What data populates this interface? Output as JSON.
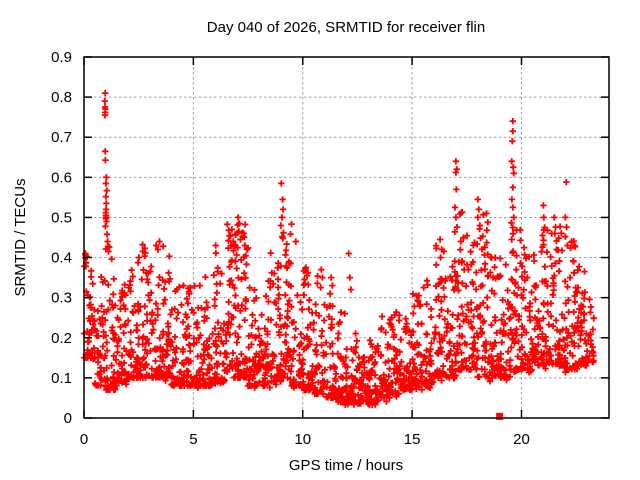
{
  "chart_data": {
    "type": "scatter",
    "title": "Day 040 of 2026, SRMTID for receiver flin",
    "xlabel": "GPS time / hours",
    "ylabel": "SRMTID / TECUs",
    "xlim": [
      0,
      24
    ],
    "ylim": [
      0,
      0.9
    ],
    "xticks": [
      {
        "value": 0,
        "label": "0"
      },
      {
        "value": 5,
        "label": "5"
      },
      {
        "value": 10,
        "label": "10"
      },
      {
        "value": 15,
        "label": "15"
      },
      {
        "value": 20,
        "label": "20"
      }
    ],
    "yticks": [
      {
        "value": 0.0,
        "label": "0"
      },
      {
        "value": 0.1,
        "label": "0.1"
      },
      {
        "value": 0.2,
        "label": "0.2"
      },
      {
        "value": 0.3,
        "label": "0.3"
      },
      {
        "value": 0.4,
        "label": "0.4"
      },
      {
        "value": 0.5,
        "label": "0.5"
      },
      {
        "value": 0.6,
        "label": "0.6"
      },
      {
        "value": 0.7,
        "label": "0.7"
      },
      {
        "value": 0.8,
        "label": "0.8"
      },
      {
        "value": 0.9,
        "label": "0.9"
      }
    ],
    "grid": {
      "show": true,
      "color": "#9e9e9e",
      "dash": "2.5,2.5"
    },
    "legend": "none",
    "marker": {
      "shape": "plus",
      "color": "#ff0000",
      "half_size": 3.2,
      "stroke_width": 1.8
    },
    "flagged_point": {
      "x": 19.0,
      "y": 0.004,
      "marker": "filled-square",
      "color": "#ff0000",
      "size": 7
    },
    "scatter_density_model": {
      "comment": "dense band of ~2200 points; bins = [start_hour, value_min, value_max, count, optional_bin_width_hours]; values skewed toward min",
      "seed": 7,
      "bin_hours": 0.5,
      "skew_exponent": 2.2,
      "bins": [
        [
          0.0,
          0.15,
          0.41,
          46
        ],
        [
          0.5,
          0.08,
          0.36,
          46
        ],
        [
          1.0,
          0.07,
          0.44,
          50
        ],
        [
          1.5,
          0.09,
          0.34,
          46
        ],
        [
          2.0,
          0.1,
          0.38,
          46
        ],
        [
          2.5,
          0.1,
          0.42,
          46
        ],
        [
          3.0,
          0.1,
          0.4,
          46
        ],
        [
          3.5,
          0.1,
          0.43,
          46
        ],
        [
          4.0,
          0.08,
          0.33,
          46
        ],
        [
          4.5,
          0.08,
          0.33,
          46
        ],
        [
          5.0,
          0.08,
          0.34,
          46
        ],
        [
          5.5,
          0.08,
          0.36,
          46
        ],
        [
          6.0,
          0.09,
          0.42,
          46
        ],
        [
          6.5,
          0.1,
          0.47,
          50
        ],
        [
          7.0,
          0.1,
          0.5,
          52
        ],
        [
          7.5,
          0.08,
          0.33,
          46
        ],
        [
          8.0,
          0.08,
          0.37,
          46
        ],
        [
          8.5,
          0.09,
          0.46,
          46
        ],
        [
          9.0,
          0.1,
          0.53,
          52
        ],
        [
          9.5,
          0.08,
          0.33,
          46
        ],
        [
          10.0,
          0.07,
          0.38,
          46
        ],
        [
          10.5,
          0.06,
          0.37,
          46
        ],
        [
          11.0,
          0.05,
          0.32,
          46
        ],
        [
          11.5,
          0.04,
          0.28,
          46
        ],
        [
          12.0,
          0.04,
          0.22,
          46
        ],
        [
          12.5,
          0.035,
          0.16,
          46
        ],
        [
          13.0,
          0.04,
          0.19,
          46
        ],
        [
          13.5,
          0.05,
          0.26,
          46
        ],
        [
          14.0,
          0.06,
          0.27,
          46
        ],
        [
          14.5,
          0.07,
          0.3,
          46
        ],
        [
          15.0,
          0.08,
          0.31,
          46
        ],
        [
          15.5,
          0.08,
          0.34,
          46
        ],
        [
          16.0,
          0.1,
          0.44,
          46
        ],
        [
          16.5,
          0.1,
          0.4,
          46
        ],
        [
          17.0,
          0.12,
          0.52,
          50
        ],
        [
          17.5,
          0.12,
          0.46,
          46
        ],
        [
          18.0,
          0.1,
          0.52,
          46
        ],
        [
          18.5,
          0.1,
          0.42,
          46
        ],
        [
          19.0,
          0.1,
          0.4,
          46
        ],
        [
          19.5,
          0.12,
          0.5,
          50
        ],
        [
          20.0,
          0.12,
          0.42,
          46
        ],
        [
          20.5,
          0.13,
          0.45,
          46
        ],
        [
          21.0,
          0.13,
          0.5,
          46
        ],
        [
          21.5,
          0.13,
          0.48,
          46
        ],
        [
          22.0,
          0.12,
          0.46,
          46
        ],
        [
          22.5,
          0.13,
          0.38,
          46
        ],
        [
          23.0,
          0.14,
          0.3,
          28,
          0.3
        ]
      ],
      "outlier_points": [
        [
          0.97,
          0.81
        ],
        [
          0.95,
          0.79
        ],
        [
          0.96,
          0.775
        ],
        [
          0.98,
          0.77
        ],
        [
          0.97,
          0.762
        ],
        [
          0.96,
          0.755
        ],
        [
          0.97,
          0.665
        ],
        [
          0.98,
          0.643
        ],
        [
          1.02,
          0.6
        ],
        [
          1.0,
          0.585
        ],
        [
          1.04,
          0.567
        ],
        [
          1.0,
          0.552
        ],
        [
          1.02,
          0.535
        ],
        [
          1.01,
          0.52
        ],
        [
          0.99,
          0.512
        ],
        [
          1.0,
          0.505
        ],
        [
          1.02,
          0.5
        ],
        [
          1.0,
          0.497
        ],
        [
          1.03,
          0.49
        ],
        [
          0.98,
          0.478
        ],
        [
          1.05,
          0.458
        ],
        [
          1.08,
          0.44
        ],
        [
          1.1,
          0.428
        ],
        [
          1.12,
          0.415
        ],
        [
          0.06,
          0.41
        ],
        [
          0.05,
          0.4
        ],
        [
          0.1,
          0.387
        ],
        [
          0.08,
          0.378
        ],
        [
          2.05,
          0.325
        ],
        [
          2.68,
          0.432
        ],
        [
          2.78,
          0.423
        ],
        [
          3.3,
          0.43
        ],
        [
          3.38,
          0.42
        ],
        [
          3.45,
          0.44
        ],
        [
          3.62,
          0.428
        ],
        [
          4.55,
          0.33
        ],
        [
          5.3,
          0.33
        ],
        [
          6.02,
          0.43
        ],
        [
          6.55,
          0.483
        ],
        [
          6.62,
          0.468
        ],
        [
          6.7,
          0.455
        ],
        [
          6.76,
          0.47
        ],
        [
          6.82,
          0.44
        ],
        [
          6.88,
          0.432
        ],
        [
          6.92,
          0.458
        ],
        [
          6.6,
          0.442
        ],
        [
          6.72,
          0.43
        ],
        [
          7.05,
          0.5
        ],
        [
          7.1,
          0.485
        ],
        [
          7.08,
          0.465
        ],
        [
          7.15,
          0.445
        ],
        [
          7.3,
          0.46
        ],
        [
          7.35,
          0.43
        ],
        [
          7.45,
          0.42
        ],
        [
          9.02,
          0.585
        ],
        [
          9.08,
          0.545
        ],
        [
          9.1,
          0.52
        ],
        [
          9.05,
          0.5
        ],
        [
          9.0,
          0.48
        ],
        [
          9.12,
          0.462
        ],
        [
          9.06,
          0.452
        ],
        [
          9.68,
          0.44
        ],
        [
          10.15,
          0.375
        ],
        [
          10.2,
          0.355
        ],
        [
          10.1,
          0.335
        ],
        [
          10.85,
          0.37
        ],
        [
          10.9,
          0.35
        ],
        [
          10.82,
          0.325
        ],
        [
          11.3,
          0.35
        ],
        [
          11.35,
          0.33
        ],
        [
          11.25,
          0.31
        ],
        [
          12.1,
          0.41
        ],
        [
          12.15,
          0.35
        ],
        [
          12.2,
          0.32
        ],
        [
          16.28,
          0.445
        ],
        [
          16.35,
          0.42
        ],
        [
          16.3,
          0.4
        ],
        [
          17.0,
          0.64
        ],
        [
          17.04,
          0.62
        ],
        [
          17.0,
          0.612
        ],
        [
          17.02,
          0.57
        ],
        [
          16.96,
          0.525
        ],
        [
          17.0,
          0.5
        ],
        [
          17.05,
          0.476
        ],
        [
          16.95,
          0.464
        ],
        [
          18.0,
          0.545
        ],
        [
          18.05,
          0.52
        ],
        [
          18.0,
          0.5
        ],
        [
          18.1,
          0.48
        ],
        [
          18.4,
          0.51
        ],
        [
          18.46,
          0.488
        ],
        [
          18.42,
          0.468
        ],
        [
          19.6,
          0.74
        ],
        [
          19.6,
          0.715
        ],
        [
          19.58,
          0.69
        ],
        [
          19.55,
          0.64
        ],
        [
          19.62,
          0.625
        ],
        [
          19.65,
          0.61
        ],
        [
          19.6,
          0.575
        ],
        [
          19.56,
          0.545
        ],
        [
          19.6,
          0.525
        ],
        [
          19.65,
          0.5
        ],
        [
          19.6,
          0.475
        ],
        [
          19.55,
          0.445
        ],
        [
          19.62,
          0.415
        ],
        [
          21.0,
          0.53
        ],
        [
          21.02,
          0.5
        ],
        [
          21.06,
          0.475
        ],
        [
          20.96,
          0.455
        ],
        [
          21.0,
          0.432
        ],
        [
          21.5,
          0.5
        ],
        [
          21.56,
          0.476
        ],
        [
          21.52,
          0.46
        ],
        [
          21.6,
          0.42
        ],
        [
          22.05,
          0.588
        ],
        [
          22.0,
          0.5
        ],
        [
          22.06,
          0.476
        ],
        [
          22.0,
          0.452
        ],
        [
          22.1,
          0.43
        ],
        [
          22.3,
          0.44
        ]
      ]
    },
    "colors": {
      "marker": "#ff0000",
      "border": "#000000",
      "grid": "#9e9e9e",
      "background": "#ffffff"
    }
  }
}
